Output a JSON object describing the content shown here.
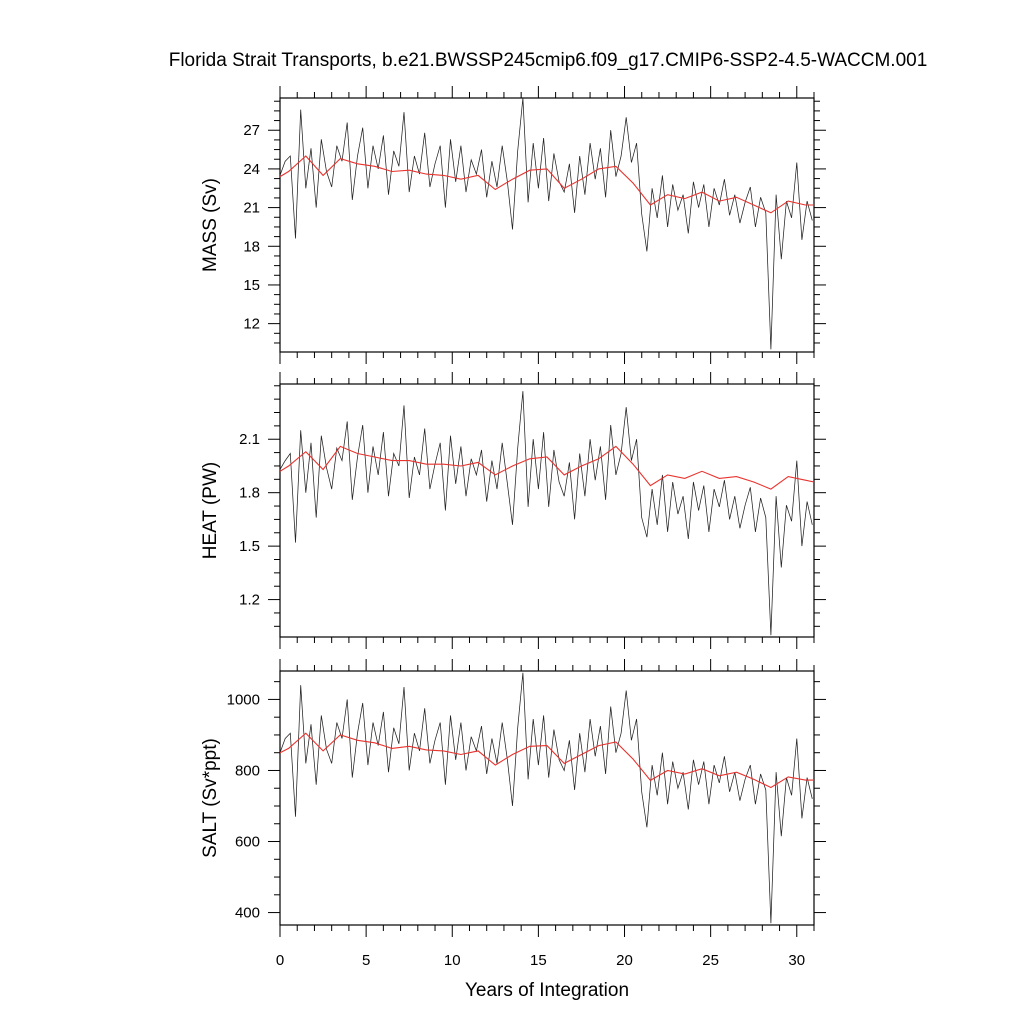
{
  "chart_data": {
    "type": "line",
    "title": "Florida Strait Transports, b.e21.BWSSP245cmip6.f09_g17.CMIP6-SSP2-4.5-WACCM.001",
    "xlabel": "Years of Integration",
    "xlim": [
      0,
      31
    ],
    "xticks": [
      0,
      5,
      10,
      15,
      20,
      25,
      30
    ],
    "colors": {
      "raw": "#222222",
      "smooth": "#e8332e"
    },
    "panels": [
      {
        "ylabel": "MASS (Sv)",
        "ylim": [
          9.8,
          29.5
        ],
        "yticks": [
          12,
          15,
          18,
          21,
          24,
          27
        ],
        "series": [
          {
            "kind": "monthly",
            "x": [
              0.0,
              0.3,
              0.6,
              0.9,
              1.2,
              1.5,
              1.8,
              2.1,
              2.4,
              2.7,
              3.0,
              3.3,
              3.6,
              3.9,
              4.2,
              4.5,
              4.8,
              5.1,
              5.4,
              5.7,
              6.0,
              6.3,
              6.6,
              6.9,
              7.2,
              7.5,
              7.8,
              8.1,
              8.4,
              8.7,
              9.0,
              9.3,
              9.6,
              9.9,
              10.2,
              10.5,
              10.8,
              11.1,
              11.4,
              11.7,
              12.0,
              12.3,
              12.6,
              12.9,
              13.2,
              13.5,
              13.8,
              14.1,
              14.4,
              14.7,
              15.0,
              15.3,
              15.6,
              15.9,
              16.2,
              16.5,
              16.8,
              17.1,
              17.4,
              17.7,
              18.0,
              18.3,
              18.6,
              18.9,
              19.2,
              19.5,
              19.8,
              20.1,
              20.4,
              20.7,
              21.0,
              21.3,
              21.6,
              21.9,
              22.2,
              22.5,
              22.8,
              23.1,
              23.4,
              23.7,
              24.0,
              24.3,
              24.6,
              24.9,
              25.2,
              25.5,
              25.8,
              26.1,
              26.4,
              26.7,
              27.0,
              27.3,
              27.6,
              27.9,
              28.2,
              28.5,
              28.8,
              29.1,
              29.4,
              29.7,
              30.0,
              30.3,
              30.6,
              30.9
            ],
            "y": [
              23.5,
              24.6,
              25.0,
              18.6,
              28.6,
              22.5,
              25.6,
              21.0,
              26.3,
              23.8,
              22.6,
              25.8,
              24.6,
              27.6,
              21.6,
              25.0,
              27.2,
              22.5,
              25.8,
              24.0,
              26.6,
              22.0,
              25.4,
              24.2,
              28.4,
              22.2,
              25.0,
              23.6,
              26.8,
              22.6,
              24.4,
              25.8,
              21.0,
              26.3,
              23.0,
              25.8,
              22.2,
              24.7,
              23.6,
              25.5,
              21.8,
              24.6,
              22.6,
              25.8,
              23.0,
              19.3,
              25.4,
              29.5,
              21.4,
              26.0,
              22.5,
              26.4,
              21.5,
              25.2,
              23.0,
              22.2,
              24.4,
              20.6,
              25.0,
              22.0,
              26.0,
              23.2,
              25.6,
              21.8,
              27.0,
              23.4,
              25.0,
              28.0,
              24.5,
              26.0,
              20.5,
              17.6,
              22.5,
              20.2,
              23.5,
              19.5,
              22.8,
              20.8,
              22.0,
              19.0,
              23.0,
              21.0,
              22.8,
              19.5,
              22.5,
              21.2,
              23.2,
              20.4,
              22.0,
              19.8,
              21.4,
              22.6,
              19.5,
              21.8,
              20.6,
              10.0,
              22.0,
              17.0,
              21.5,
              20.2,
              24.5,
              18.5,
              21.5,
              20.0
            ]
          },
          {
            "kind": "annual",
            "x": [
              0.0,
              0.5,
              1.5,
              2.5,
              3.5,
              4.5,
              5.5,
              6.5,
              7.5,
              8.5,
              9.5,
              10.5,
              11.5,
              12.5,
              13.5,
              14.5,
              15.5,
              16.5,
              17.5,
              18.5,
              19.5,
              20.5,
              21.5,
              22.5,
              23.5,
              24.5,
              25.5,
              26.5,
              27.5,
              28.5,
              29.5,
              30.5,
              31.0
            ],
            "y": [
              23.4,
              23.8,
              25.0,
              23.5,
              24.8,
              24.4,
              24.2,
              23.8,
              23.9,
              23.6,
              23.5,
              23.2,
              23.5,
              22.4,
              23.2,
              23.9,
              24.0,
              22.5,
              23.2,
              24.0,
              24.2,
              22.9,
              21.2,
              22.0,
              21.7,
              22.2,
              21.5,
              21.8,
              21.2,
              20.6,
              21.5,
              21.2,
              21.2
            ]
          }
        ]
      },
      {
        "ylabel": "HEAT (PW)",
        "ylim": [
          0.99,
          2.41
        ],
        "yticks": [
          1.2,
          1.5,
          1.8,
          2.1
        ],
        "series": [
          {
            "kind": "monthly",
            "x": [
              0.0,
              0.3,
              0.6,
              0.9,
              1.2,
              1.5,
              1.8,
              2.1,
              2.4,
              2.7,
              3.0,
              3.3,
              3.6,
              3.9,
              4.2,
              4.5,
              4.8,
              5.1,
              5.4,
              5.7,
              6.0,
              6.3,
              6.6,
              6.9,
              7.2,
              7.5,
              7.8,
              8.1,
              8.4,
              8.7,
              9.0,
              9.3,
              9.6,
              9.9,
              10.2,
              10.5,
              10.8,
              11.1,
              11.4,
              11.7,
              12.0,
              12.3,
              12.6,
              12.9,
              13.2,
              13.5,
              13.8,
              14.1,
              14.4,
              14.7,
              15.0,
              15.3,
              15.6,
              15.9,
              16.2,
              16.5,
              16.8,
              17.1,
              17.4,
              17.7,
              18.0,
              18.3,
              18.6,
              18.9,
              19.2,
              19.5,
              19.8,
              20.1,
              20.4,
              20.7,
              21.0,
              21.3,
              21.6,
              21.9,
              22.2,
              22.5,
              22.8,
              23.1,
              23.4,
              23.7,
              24.0,
              24.3,
              24.6,
              24.9,
              25.2,
              25.5,
              25.8,
              26.1,
              26.4,
              26.7,
              27.0,
              27.3,
              27.6,
              27.9,
              28.2,
              28.5,
              28.8,
              29.1,
              29.4,
              29.7,
              30.0,
              30.3,
              30.6,
              30.9
            ],
            "y": [
              1.93,
              1.98,
              2.02,
              1.52,
              2.15,
              1.8,
              2.08,
              1.66,
              2.12,
              1.94,
              1.82,
              2.05,
              1.98,
              2.2,
              1.76,
              2.0,
              2.18,
              1.8,
              2.06,
              1.9,
              2.14,
              1.78,
              2.02,
              1.95,
              2.29,
              1.77,
              2.0,
              1.9,
              2.16,
              1.82,
              1.96,
              2.08,
              1.7,
              2.12,
              1.85,
              2.06,
              1.78,
              1.99,
              1.9,
              2.04,
              1.75,
              1.98,
              1.82,
              2.08,
              1.85,
              1.62,
              2.05,
              2.37,
              1.72,
              2.1,
              1.82,
              2.14,
              1.72,
              2.04,
              1.86,
              1.78,
              1.97,
              1.65,
              2.02,
              1.78,
              2.1,
              1.87,
              2.06,
              1.76,
              2.18,
              1.9,
              2.02,
              2.28,
              1.98,
              2.1,
              1.66,
              1.55,
              1.82,
              1.62,
              1.9,
              1.58,
              1.86,
              1.68,
              1.78,
              1.54,
              1.86,
              1.7,
              1.84,
              1.58,
              1.82,
              1.72,
              1.87,
              1.65,
              1.78,
              1.6,
              1.73,
              1.83,
              1.58,
              1.77,
              1.66,
              1.0,
              1.78,
              1.38,
              1.73,
              1.64,
              1.98,
              1.5,
              1.75,
              1.62
            ]
          },
          {
            "kind": "annual",
            "x": [
              0.0,
              0.5,
              1.5,
              2.5,
              3.5,
              4.5,
              5.5,
              6.5,
              7.5,
              8.5,
              9.5,
              10.5,
              11.5,
              12.5,
              13.5,
              14.5,
              15.5,
              16.5,
              17.5,
              18.5,
              19.5,
              20.5,
              21.5,
              22.5,
              23.5,
              24.5,
              25.5,
              26.5,
              27.5,
              28.5,
              29.5,
              30.5,
              31.0
            ],
            "y": [
              1.92,
              1.95,
              2.03,
              1.93,
              2.06,
              2.02,
              2.0,
              1.98,
              1.98,
              1.96,
              1.96,
              1.95,
              1.97,
              1.9,
              1.95,
              1.99,
              2.0,
              1.9,
              1.95,
              1.99,
              2.06,
              1.96,
              1.84,
              1.9,
              1.88,
              1.92,
              1.88,
              1.89,
              1.86,
              1.82,
              1.89,
              1.87,
              1.86
            ]
          }
        ]
      },
      {
        "ylabel": "SALT (Sv*ppt)",
        "ylim": [
          365,
          1080
        ],
        "yticks": [
          400,
          600,
          800,
          1000
        ],
        "series": [
          {
            "kind": "monthly",
            "x": [
              0.0,
              0.3,
              0.6,
              0.9,
              1.2,
              1.5,
              1.8,
              2.1,
              2.4,
              2.7,
              3.0,
              3.3,
              3.6,
              3.9,
              4.2,
              4.5,
              4.8,
              5.1,
              5.4,
              5.7,
              6.0,
              6.3,
              6.6,
              6.9,
              7.2,
              7.5,
              7.8,
              8.1,
              8.4,
              8.7,
              9.0,
              9.3,
              9.6,
              9.9,
              10.2,
              10.5,
              10.8,
              11.1,
              11.4,
              11.7,
              12.0,
              12.3,
              12.6,
              12.9,
              13.2,
              13.5,
              13.8,
              14.1,
              14.4,
              14.7,
              15.0,
              15.3,
              15.6,
              15.9,
              16.2,
              16.5,
              16.8,
              17.1,
              17.4,
              17.7,
              18.0,
              18.3,
              18.6,
              18.9,
              19.2,
              19.5,
              19.8,
              20.1,
              20.4,
              20.7,
              21.0,
              21.3,
              21.6,
              21.9,
              22.2,
              22.5,
              22.8,
              23.1,
              23.4,
              23.7,
              24.0,
              24.3,
              24.6,
              24.9,
              25.2,
              25.5,
              25.8,
              26.1,
              26.4,
              26.7,
              27.0,
              27.3,
              27.6,
              27.9,
              28.2,
              28.5,
              28.8,
              29.1,
              29.4,
              29.7,
              30.0,
              30.3,
              30.6,
              30.9
            ],
            "y": [
              850,
              890,
              905,
              670,
              1040,
              820,
              930,
              760,
              955,
              860,
              820,
              935,
              890,
              1000,
              780,
              905,
              990,
              815,
              935,
              870,
              965,
              795,
              920,
              875,
              1035,
              800,
              905,
              855,
              975,
              820,
              885,
              935,
              760,
              955,
              830,
              935,
              800,
              895,
              855,
              925,
              790,
              890,
              820,
              935,
              830,
              700,
              920,
              1075,
              775,
              945,
              815,
              955,
              780,
              915,
              830,
              800,
              885,
              745,
              905,
              795,
              945,
              840,
              925,
              790,
              980,
              850,
              905,
              1025,
              885,
              945,
              740,
              640,
              815,
              730,
              850,
              705,
              825,
              750,
              795,
              690,
              830,
              760,
              825,
              705,
              815,
              765,
              840,
              740,
              795,
              715,
              775,
              815,
              705,
              790,
              745,
              370,
              795,
              615,
              780,
              730,
              890,
              665,
              780,
              720
            ]
          },
          {
            "kind": "annual",
            "x": [
              0.0,
              0.5,
              1.5,
              2.5,
              3.5,
              4.5,
              5.5,
              6.5,
              7.5,
              8.5,
              9.5,
              10.5,
              11.5,
              12.5,
              13.5,
              14.5,
              15.5,
              16.5,
              17.5,
              18.5,
              19.5,
              20.5,
              21.5,
              22.5,
              23.5,
              24.5,
              25.5,
              26.5,
              27.5,
              28.5,
              29.5,
              30.5,
              31.0
            ],
            "y": [
              850,
              862,
              905,
              855,
              900,
              885,
              878,
              862,
              868,
              858,
              855,
              845,
              855,
              815,
              845,
              868,
              870,
              820,
              845,
              870,
              880,
              832,
              772,
              800,
              790,
              805,
              785,
              795,
              775,
              752,
              782,
              773,
              773
            ]
          }
        ]
      }
    ]
  }
}
